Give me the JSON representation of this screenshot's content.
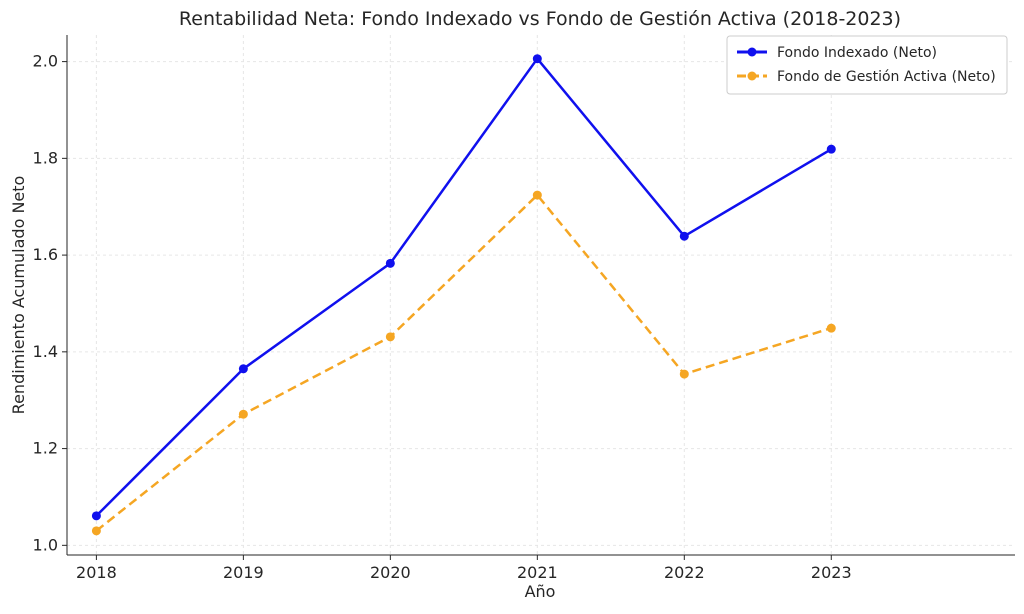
{
  "chart_data": {
    "type": "line",
    "title": "Rentabilidad Neta: Fondo Indexado vs Fondo de Gestión Activa (2018-2023)",
    "xlabel": "Año",
    "ylabel": "Rendimiento Acumulado Neto",
    "x": [
      2018,
      2019,
      2020,
      2021,
      2022,
      2023
    ],
    "x_tick_labels": [
      "2018",
      "2019",
      "2020",
      "2021",
      "2022",
      "2023"
    ],
    "y_ticks": [
      1.0,
      1.2,
      1.4,
      1.6,
      1.8,
      2.0
    ],
    "y_tick_labels": [
      "1.0",
      "1.2",
      "1.4",
      "1.6",
      "1.8",
      "2.0"
    ],
    "xlim": [
      2017.8,
      2024.25
    ],
    "ylim": [
      0.98,
      2.055
    ],
    "grid": true,
    "legend_position": "top-right",
    "series": [
      {
        "name": "Fondo Indexado (Neto)",
        "color": "#1010ee",
        "line_style": "solid",
        "marker": "circle",
        "values": [
          1.061,
          1.365,
          1.583,
          2.006,
          1.639,
          1.819
        ]
      },
      {
        "name": "Fondo de Gestión Activa (Neto)",
        "color": "#f5a623",
        "line_style": "dashed",
        "marker": "circle",
        "values": [
          1.03,
          1.271,
          1.431,
          1.724,
          1.354,
          1.449
        ]
      }
    ]
  }
}
